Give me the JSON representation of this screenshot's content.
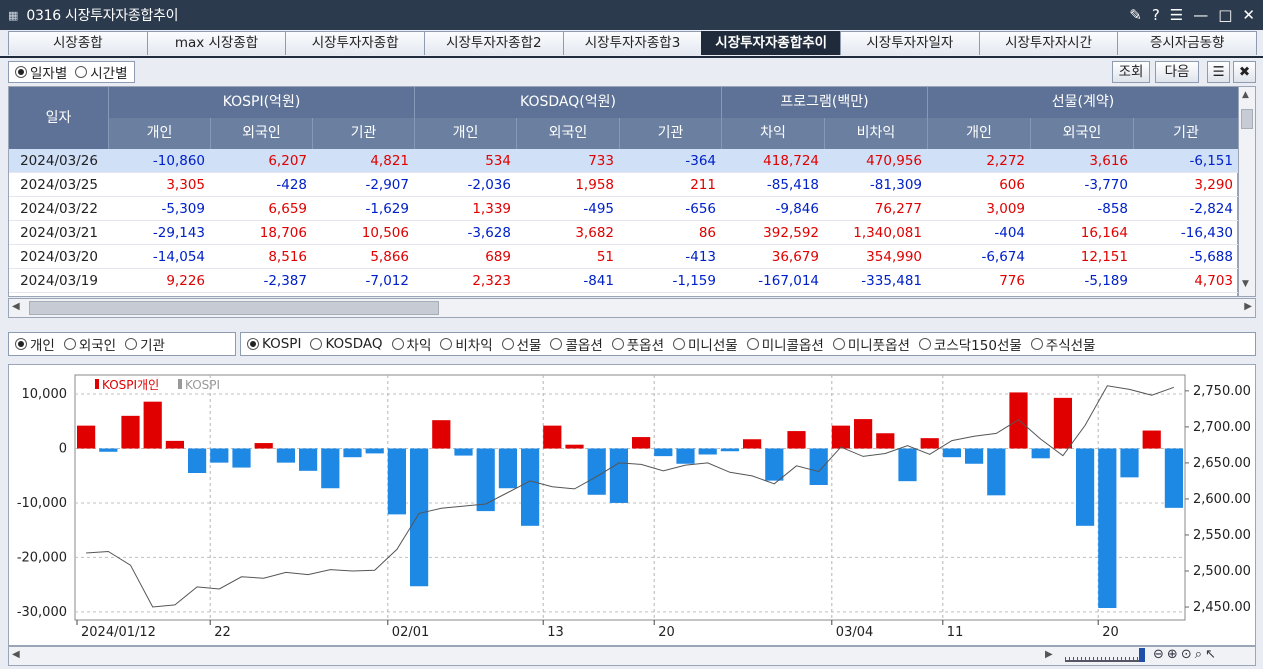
{
  "window": {
    "title": "0316 시장투자자종합추이"
  },
  "tabs": [
    "시장종합",
    "max 시장종합",
    "시장투자자종합",
    "시장투자자종합2",
    "시장투자자종합3",
    "시장투자자종합추이",
    "시장투자자일자",
    "시장투자자시간",
    "증시자금동향"
  ],
  "active_tab": 5,
  "period": {
    "options": [
      "일자별",
      "시간별"
    ],
    "selected": 0
  },
  "buttons": {
    "query": "조회",
    "next": "다음"
  },
  "table": {
    "date_header": "일자",
    "groups": [
      "KOSPI(억원)",
      "KOSDAQ(억원)",
      "프로그램(백만)",
      "선물(계약)"
    ],
    "sub": [
      "개인",
      "외국인",
      "기관",
      "개인",
      "외국인",
      "기관",
      "차익",
      "비차익",
      "개인",
      "외국인",
      "기관"
    ],
    "rows": [
      {
        "date": "2024/03/26",
        "v": [
          "-10,860",
          "6,207",
          "4,821",
          "534",
          "733",
          "-364",
          "418,724",
          "470,956",
          "2,272",
          "3,616",
          "-6,151"
        ]
      },
      {
        "date": "2024/03/25",
        "v": [
          "3,305",
          "-428",
          "-2,907",
          "-2,036",
          "1,958",
          "211",
          "-85,418",
          "-81,309",
          "606",
          "-3,770",
          "3,290"
        ]
      },
      {
        "date": "2024/03/22",
        "v": [
          "-5,309",
          "6,659",
          "-1,629",
          "1,339",
          "-495",
          "-656",
          "-9,846",
          "76,277",
          "3,009",
          "-858",
          "-2,824"
        ]
      },
      {
        "date": "2024/03/21",
        "v": [
          "-29,143",
          "18,706",
          "10,506",
          "-3,628",
          "3,682",
          "86",
          "392,592",
          "1,340,081",
          "-404",
          "16,164",
          "-16,430"
        ]
      },
      {
        "date": "2024/03/20",
        "v": [
          "-14,054",
          "8,516",
          "5,866",
          "689",
          "51",
          "-413",
          "36,679",
          "354,990",
          "-6,674",
          "12,151",
          "-5,688"
        ]
      },
      {
        "date": "2024/03/19",
        "v": [
          "9,226",
          "-2,387",
          "-7,012",
          "2,323",
          "-841",
          "-1,159",
          "-167,014",
          "-335,481",
          "776",
          "-5,189",
          "4,703"
        ]
      }
    ]
  },
  "investor": {
    "options": [
      "개인",
      "외국인",
      "기관"
    ],
    "selected": 0
  },
  "market": {
    "options": [
      "KOSPI",
      "KOSDAQ",
      "차익",
      "비차익",
      "선물",
      "콜옵션",
      "풋옵션",
      "미니선물",
      "미니콜옵션",
      "미니풋옵션",
      "코스닥150선물",
      "주식선물"
    ],
    "selected": 0
  },
  "chart_data": {
    "type": "bar",
    "legend": [
      "KOSPI개인",
      "KOSPI"
    ],
    "colors": {
      "pos": "#e00000",
      "neg": "#1e88e5",
      "line": "#555555"
    },
    "y_left": {
      "ticks": [
        "10,000",
        "0",
        "-10,000",
        "-20,000",
        "-30,000"
      ],
      "range": [
        -31500,
        13500
      ]
    },
    "y_right": {
      "ticks": [
        "2,750.00",
        "2,700.00",
        "2,650.00",
        "2,600.00",
        "2,550.00",
        "2,500.00",
        "2,450.00"
      ],
      "range": [
        2432,
        2772
      ]
    },
    "x_labels": [
      {
        "i": 0,
        "t": "2024/01/12"
      },
      {
        "i": 6,
        "t": "22"
      },
      {
        "i": 14,
        "t": "02/01"
      },
      {
        "i": 21,
        "t": "13"
      },
      {
        "i": 26,
        "t": "20"
      },
      {
        "i": 34,
        "t": "03/04"
      },
      {
        "i": 39,
        "t": "11"
      },
      {
        "i": 46,
        "t": "20"
      }
    ],
    "bars": [
      4200,
      -600,
      6000,
      8600,
      1400,
      -4500,
      -2600,
      -3500,
      1000,
      -2600,
      -4100,
      -7300,
      -1600,
      -900,
      -12100,
      -25300,
      5200,
      -1300,
      -11500,
      -7300,
      -14200,
      4200,
      700,
      -8500,
      -10000,
      2100,
      -1400,
      -2800,
      -1100,
      -500,
      1700,
      -5900,
      3200,
      -6700,
      4200,
      5400,
      2800,
      -6000,
      1900,
      -1600,
      -2800,
      -8600,
      10300,
      -1800,
      9300,
      -14200,
      -29300,
      -5300,
      3300,
      -10900
    ],
    "line": [
      2525,
      2527,
      2508,
      2450,
      2453,
      2478,
      2475,
      2492,
      2490,
      2498,
      2495,
      2502,
      2500,
      2501,
      2530,
      2580,
      2587,
      2590,
      2593,
      2609,
      2625,
      2617,
      2614,
      2631,
      2650,
      2648,
      2639,
      2647,
      2650,
      2637,
      2632,
      2621,
      2646,
      2638,
      2672,
      2659,
      2663,
      2674,
      2662,
      2681,
      2687,
      2691,
      2710,
      2683,
      2660,
      2702,
      2757,
      2752,
      2744,
      2755
    ]
  }
}
